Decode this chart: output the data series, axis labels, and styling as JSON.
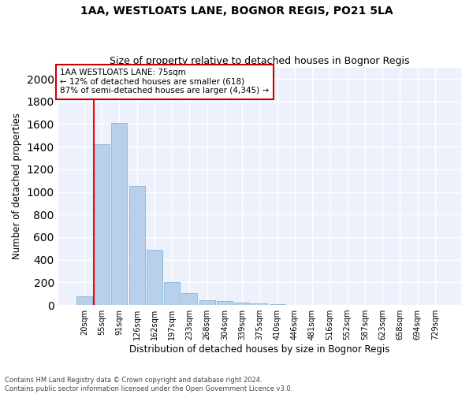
{
  "title": "1AA, WESTLOATS LANE, BOGNOR REGIS, PO21 5LA",
  "subtitle": "Size of property relative to detached houses in Bognor Regis",
  "xlabel": "Distribution of detached houses by size in Bognor Regis",
  "ylabel": "Number of detached properties",
  "bar_labels": [
    "20sqm",
    "55sqm",
    "91sqm",
    "126sqm",
    "162sqm",
    "197sqm",
    "233sqm",
    "268sqm",
    "304sqm",
    "339sqm",
    "375sqm",
    "410sqm",
    "446sqm",
    "481sqm",
    "516sqm",
    "552sqm",
    "587sqm",
    "623sqm",
    "658sqm",
    "694sqm",
    "729sqm"
  ],
  "bar_values": [
    80,
    1420,
    1610,
    1050,
    490,
    205,
    105,
    42,
    32,
    22,
    15,
    8,
    3,
    2,
    1,
    1,
    0,
    0,
    0,
    0,
    0
  ],
  "bar_color": "#b8d0ea",
  "bar_edge_color": "#7aadd4",
  "red_line_bin_index": 1,
  "annotation_text": "1AA WESTLOATS LANE: 75sqm\n← 12% of detached houses are smaller (618)\n87% of semi-detached houses are larger (4,345) →",
  "ylim": [
    0,
    2100
  ],
  "yticks": [
    0,
    200,
    400,
    600,
    800,
    1000,
    1200,
    1400,
    1600,
    1800,
    2000
  ],
  "background_color": "#edf1fb",
  "footer_text": "Contains HM Land Registry data © Crown copyright and database right 2024.\nContains public sector information licensed under the Open Government Licence v3.0.",
  "title_fontsize": 10,
  "subtitle_fontsize": 9,
  "annotation_box_color": "#ffffff",
  "annotation_box_edge_color": "#cc0000"
}
